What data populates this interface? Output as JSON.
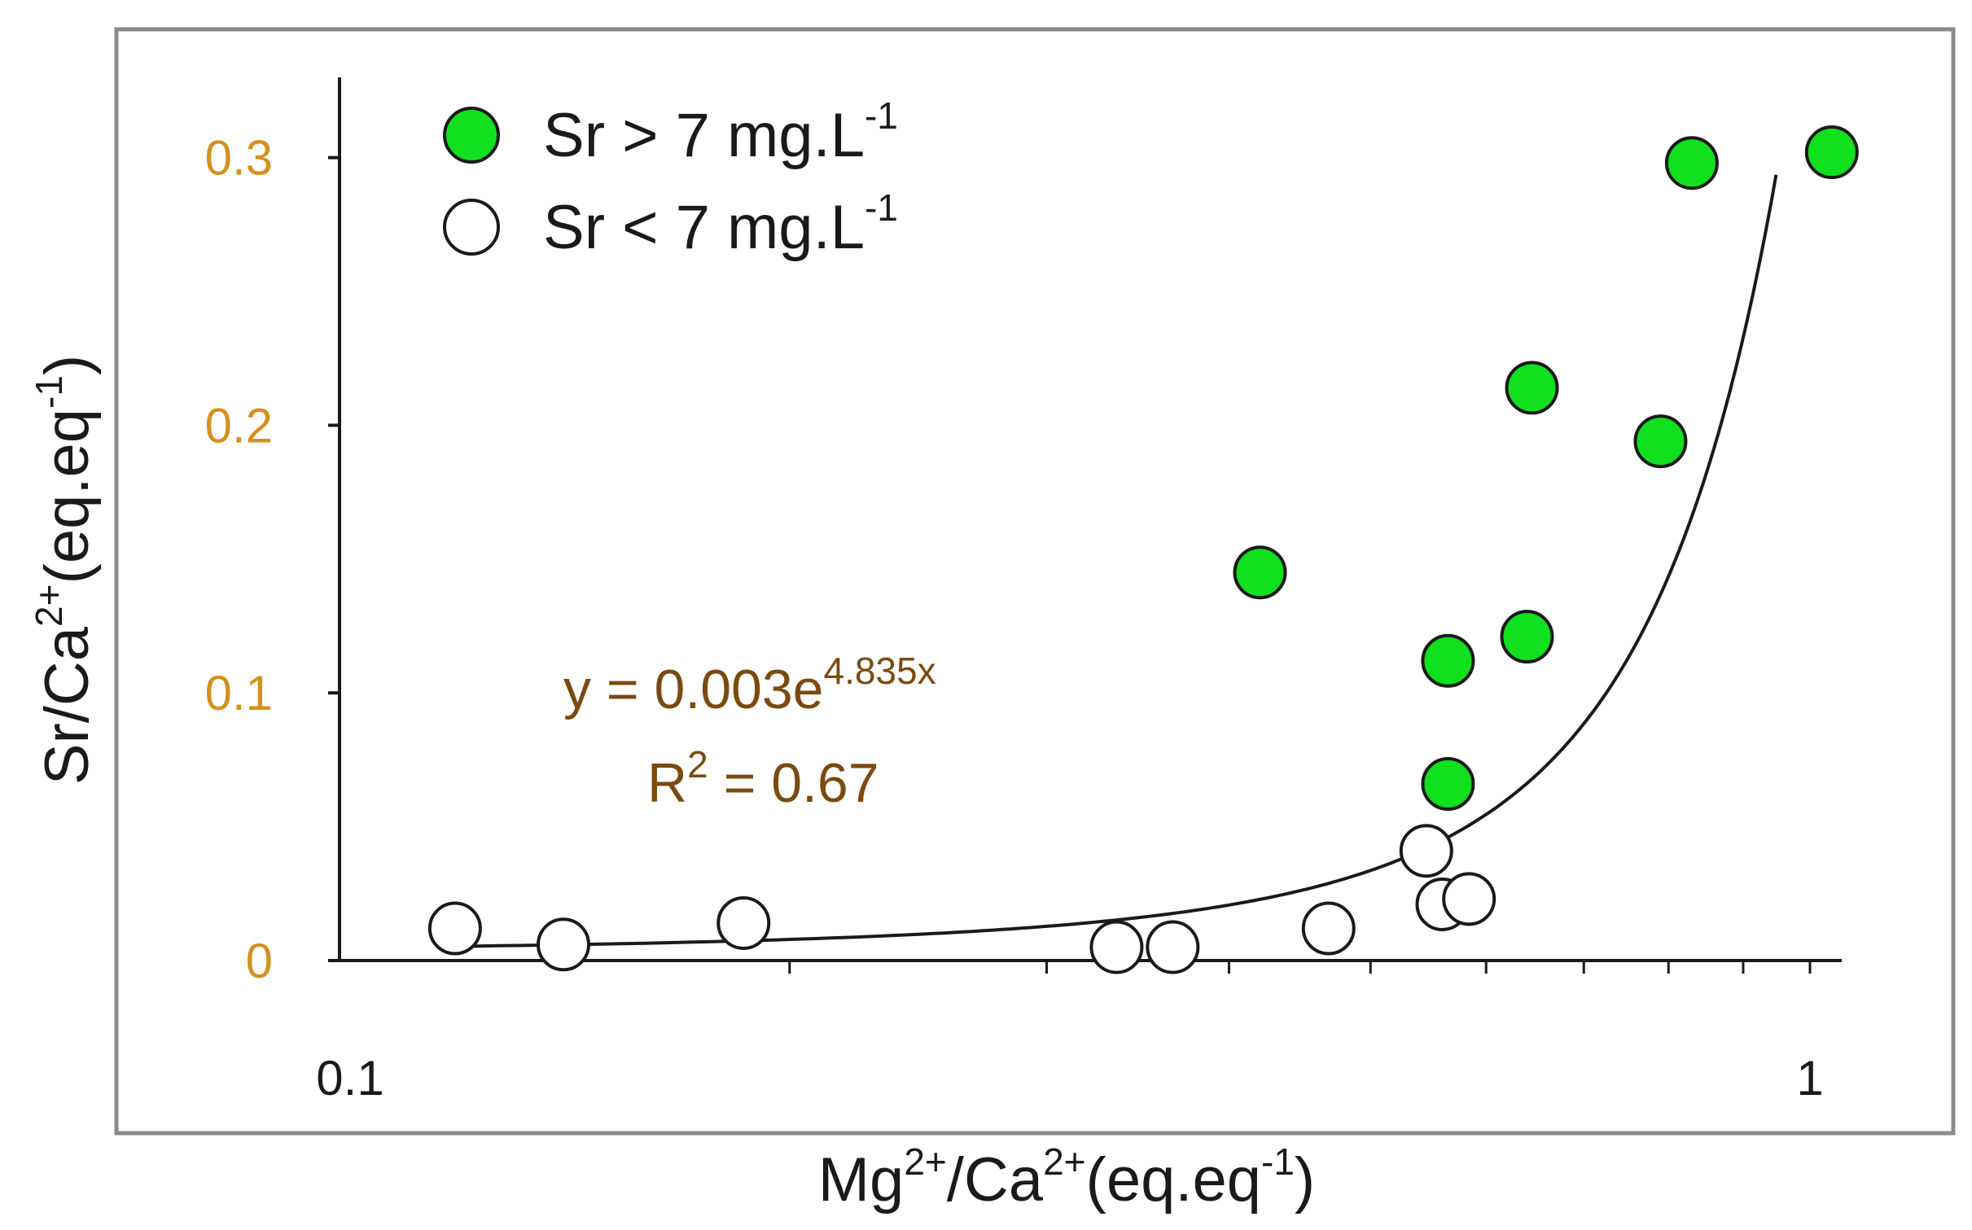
{
  "chart_data": {
    "type": "scatter",
    "xscale": "log",
    "xlim": [
      0.1,
      1.05
    ],
    "ylim": [
      0,
      0.33
    ],
    "x_ticks": [
      0.1,
      1
    ],
    "x_tick_labels": [
      "0.1",
      "1"
    ],
    "y_ticks": [
      0,
      0.1,
      0.2,
      0.3
    ],
    "y_tick_labels": [
      "0",
      "0.1",
      "0.2",
      "0.3"
    ],
    "xlabel": {
      "base1": "Mg",
      "sup1": "2+",
      "mid": "/Ca",
      "sup2": "2+",
      "tail": "(eq.eq",
      "sup3": "-1",
      "end": ")"
    },
    "ylabel": {
      "base1": "Sr/Ca",
      "sup1": "2+",
      "tail": "(eq.eq",
      "sup2": "-1",
      "end": ")"
    },
    "grid": false,
    "legend_position": "top-left",
    "legend": [
      {
        "text": "Sr > 7 mg.L",
        "sup": "-1"
      },
      {
        "text": "Sr < 7 mg.L",
        "sup": "-1"
      }
    ],
    "series": [
      {
        "marker": "filled-circle",
        "color": "#11e01f",
        "points": [
          {
            "x": 0.42,
            "y": 0.145
          },
          {
            "x": 0.565,
            "y": 0.112
          },
          {
            "x": 0.565,
            "y": 0.066
          },
          {
            "x": 0.64,
            "y": 0.121
          },
          {
            "x": 0.645,
            "y": 0.214
          },
          {
            "x": 0.79,
            "y": 0.194
          },
          {
            "x": 0.83,
            "y": 0.298
          },
          {
            "x": 1.035,
            "y": 0.302
          }
        ]
      },
      {
        "marker": "open-circle",
        "color": "#ffffff",
        "points": [
          {
            "x": 0.118,
            "y": 0.012
          },
          {
            "x": 0.14,
            "y": 0.006
          },
          {
            "x": 0.186,
            "y": 0.014
          },
          {
            "x": 0.335,
            "y": 0.005
          },
          {
            "x": 0.366,
            "y": 0.005
          },
          {
            "x": 0.468,
            "y": 0.012
          },
          {
            "x": 0.546,
            "y": 0.041
          },
          {
            "x": 0.56,
            "y": 0.021
          },
          {
            "x": 0.584,
            "y": 0.023
          }
        ]
      }
    ],
    "trendline": {
      "a": 0.003,
      "b": 4.835,
      "x_start": 0.118,
      "x_end": 0.948
    },
    "annotations": {
      "equation_main": "y = 0.003e",
      "equation_exp": "4.835x",
      "r2_base": "R",
      "r2_sup": "2",
      "r2_value": " = 0.67"
    },
    "colors": {
      "axis": "#1a1a1a",
      "frame": "#8a8a8a",
      "tick_label": "#d4911f",
      "equation": "#7a4a10"
    }
  }
}
